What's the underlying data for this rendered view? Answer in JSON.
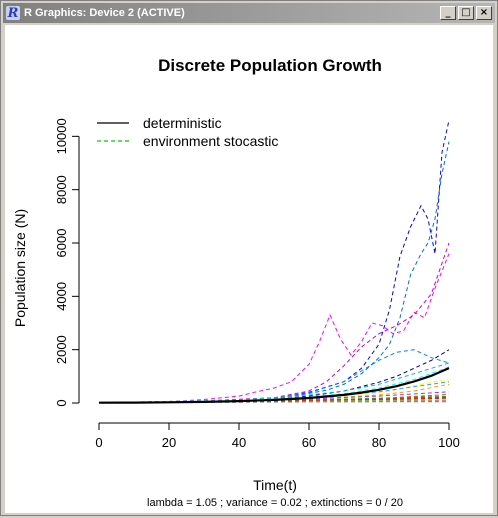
{
  "window": {
    "title": "R Graphics: Device 2 (ACTIVE)",
    "icon": "r-logo-icon",
    "buttons": {
      "minimize": "_",
      "maximize": "□",
      "close": "×"
    }
  },
  "chart_data": {
    "type": "line",
    "title": "Discrete Population Growth",
    "xlabel": "Time(t)",
    "ylabel": "Population size (N)",
    "subtitle": "lambda =  1.05 ; variance =  0.02 ; extinctions =  0 / 20",
    "xlim": [
      0,
      100
    ],
    "ylim": [
      0,
      10800
    ],
    "x_ticks": [
      0,
      20,
      40,
      60,
      80,
      100
    ],
    "y_ticks": [
      0,
      2000,
      4000,
      6000,
      8000,
      10000
    ],
    "grid": false,
    "legend": {
      "position": "top-left",
      "entries": [
        {
          "label": "deterministic",
          "color": "#000000",
          "dash": "solid"
        },
        {
          "label": "environment stocastic",
          "color": "#00cc00",
          "dash": "dashed"
        }
      ]
    },
    "deterministic": {
      "name": "deterministic",
      "color": "#000000",
      "x": [
        0,
        10,
        20,
        30,
        40,
        50,
        60,
        70,
        75,
        80,
        85,
        90,
        95,
        100
      ],
      "y": [
        10,
        16,
        27,
        43,
        70,
        115,
        187,
        305,
        390,
        495,
        630,
        805,
        1025,
        1310
      ]
    },
    "stochastic": [
      {
        "color": "#0000ff",
        "x": [
          0,
          20,
          40,
          50,
          60,
          65,
          70,
          75,
          80,
          83,
          86,
          89,
          92,
          94,
          96,
          98,
          100
        ],
        "y": [
          10,
          40,
          90,
          160,
          400,
          600,
          800,
          1300,
          2200,
          3500,
          5500,
          6600,
          7400,
          6900,
          5600,
          9400,
          10600
        ]
      },
      {
        "color": "#0066ff",
        "x": [
          0,
          20,
          40,
          50,
          60,
          65,
          70,
          75,
          80,
          83,
          86,
          89,
          92,
          94,
          96,
          98,
          100
        ],
        "y": [
          10,
          35,
          80,
          140,
          360,
          480,
          700,
          1100,
          1700,
          2200,
          3200,
          4800,
          5600,
          6000,
          6900,
          8600,
          9800
        ]
      },
      {
        "color": "#ff00ff",
        "x": [
          0,
          20,
          30,
          40,
          45,
          50,
          55,
          60,
          63,
          66,
          69,
          72,
          75,
          78,
          81,
          84,
          87,
          90,
          93,
          96,
          100
        ],
        "y": [
          10,
          50,
          130,
          260,
          420,
          560,
          800,
          1450,
          2300,
          3300,
          2400,
          1800,
          2300,
          3000,
          2900,
          2600,
          2700,
          3400,
          3200,
          4300,
          5600
        ]
      },
      {
        "color": "#cc00cc",
        "x": [
          0,
          30,
          50,
          60,
          65,
          70,
          75,
          80,
          85,
          90,
          95,
          100
        ],
        "y": [
          10,
          80,
          200,
          450,
          800,
          1400,
          2100,
          2600,
          2900,
          3300,
          4100,
          6000
        ]
      },
      {
        "color": "#0080ff",
        "x": [
          0,
          30,
          50,
          60,
          70,
          75,
          80,
          85,
          90,
          95,
          100
        ],
        "y": [
          10,
          70,
          160,
          380,
          800,
          1200,
          1600,
          1900,
          2000,
          1700,
          1500
        ]
      },
      {
        "color": "#000080",
        "x": [
          0,
          30,
          50,
          60,
          70,
          80,
          85,
          90,
          95,
          100
        ],
        "y": [
          10,
          60,
          140,
          260,
          450,
          780,
          1000,
          1300,
          1600,
          2000
        ]
      },
      {
        "color": "#00bfbf",
        "x": [
          0,
          40,
          60,
          70,
          80,
          90,
          100
        ],
        "y": [
          10,
          110,
          300,
          450,
          700,
          1100,
          1500
        ]
      },
      {
        "color": "#00ffff",
        "x": [
          0,
          40,
          60,
          70,
          80,
          90,
          100
        ],
        "y": [
          10,
          90,
          220,
          350,
          560,
          880,
          1350
        ]
      },
      {
        "color": "#00cc00",
        "x": [
          0,
          40,
          60,
          80,
          100
        ],
        "y": [
          10,
          60,
          120,
          160,
          220
        ]
      },
      {
        "color": "#ffff00",
        "x": [
          0,
          40,
          60,
          80,
          90,
          100
        ],
        "y": [
          10,
          70,
          180,
          360,
          650,
          900
        ]
      },
      {
        "color": "#ff9900",
        "x": [
          0,
          40,
          60,
          80,
          90,
          100
        ],
        "y": [
          10,
          60,
          140,
          300,
          450,
          700
        ]
      },
      {
        "color": "#ff0000",
        "x": [
          0,
          40,
          60,
          80,
          100
        ],
        "y": [
          10,
          40,
          90,
          120,
          180
        ]
      },
      {
        "color": "#996600",
        "x": [
          0,
          40,
          60,
          80,
          100
        ],
        "y": [
          10,
          50,
          100,
          170,
          320
        ]
      },
      {
        "color": "#66cc00",
        "x": [
          0,
          40,
          60,
          80,
          100
        ],
        "y": [
          10,
          40,
          80,
          100,
          110
        ]
      },
      {
        "color": "#9933ff",
        "x": [
          0,
          40,
          60,
          80,
          100
        ],
        "y": [
          10,
          70,
          150,
          260,
          420
        ]
      },
      {
        "color": "#ff66cc",
        "x": [
          0,
          40,
          60,
          80,
          100
        ],
        "y": [
          10,
          30,
          50,
          70,
          80
        ]
      },
      {
        "color": "#339933",
        "x": [
          0,
          40,
          60,
          80,
          100
        ],
        "y": [
          10,
          50,
          110,
          180,
          250
        ]
      },
      {
        "color": "#808080",
        "x": [
          0,
          40,
          60,
          80,
          100
        ],
        "y": [
          10,
          30,
          40,
          45,
          50
        ]
      },
      {
        "color": "#3399ff",
        "x": [
          0,
          40,
          60,
          80,
          100
        ],
        "y": [
          10,
          80,
          200,
          420,
          800
        ]
      },
      {
        "color": "#cc3300",
        "x": [
          0,
          40,
          60,
          80,
          100
        ],
        "y": [
          10,
          45,
          95,
          140,
          210
        ]
      }
    ]
  }
}
